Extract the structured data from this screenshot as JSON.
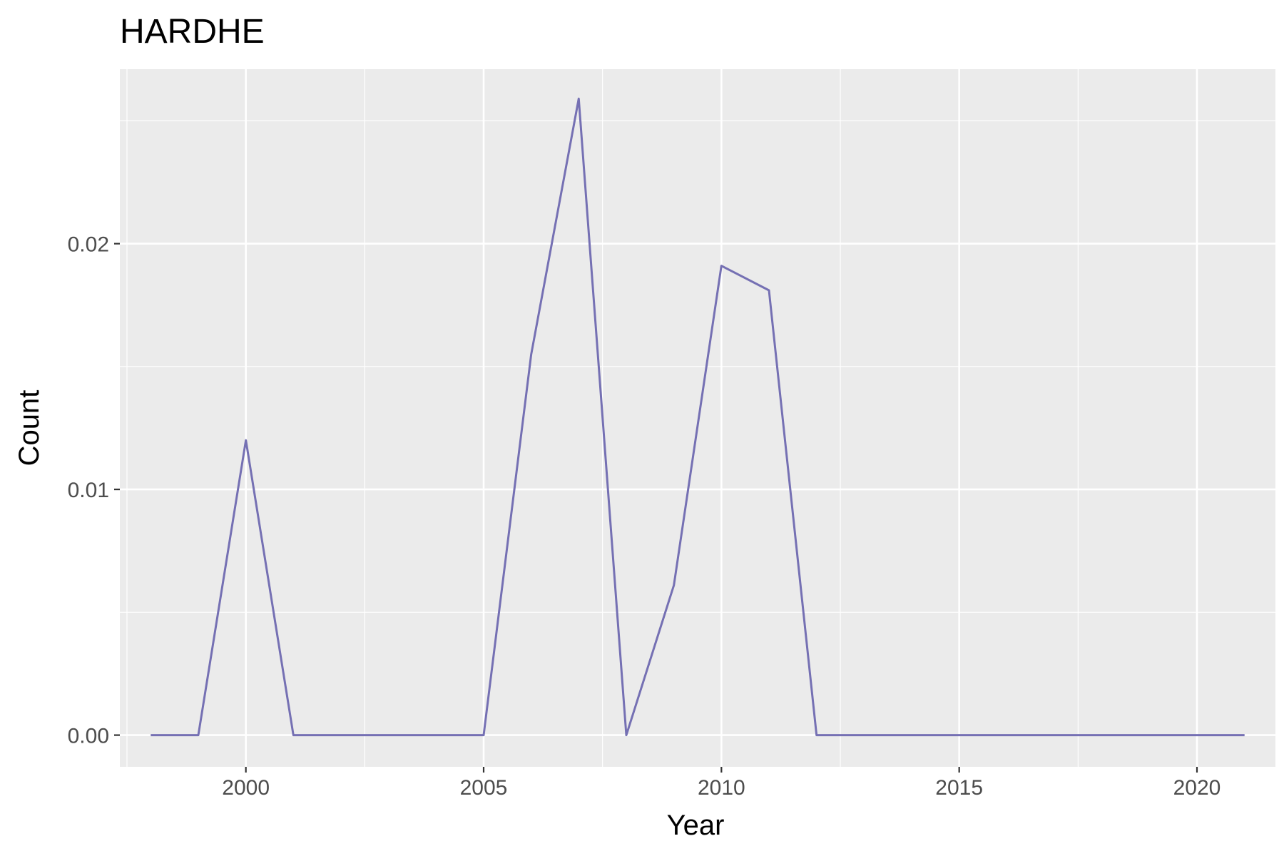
{
  "chart_data": {
    "type": "line",
    "title": "HARDHE",
    "xlabel": "Year",
    "ylabel": "Count",
    "xlim": [
      1997.35,
      2021.65
    ],
    "ylim": [
      -0.00129,
      0.0271
    ],
    "x_ticks": [
      2000,
      2005,
      2010,
      2015,
      2020
    ],
    "x_tick_labels": [
      "2000",
      "2005",
      "2010",
      "2015",
      "2020"
    ],
    "x_minor_ticks": [
      1997.5,
      2002.5,
      2007.5,
      2012.5,
      2017.5
    ],
    "y_ticks": [
      0,
      0.01,
      0.02
    ],
    "y_tick_labels": [
      "0.00",
      "0.01",
      "0.02"
    ],
    "y_minor_ticks": [
      0.005,
      0.015,
      0.025
    ],
    "grid": true,
    "panel_color": "#ebebeb",
    "grid_color": "#ffffff",
    "line_color": "#7570b3",
    "series": [
      {
        "x": [
          1998,
          1999,
          2000,
          2001,
          2002,
          2003,
          2004,
          2005,
          2006,
          2007,
          2008,
          2009,
          2010,
          2011,
          2012,
          2013,
          2014,
          2015,
          2016,
          2017,
          2018,
          2019,
          2020,
          2021
        ],
        "y": [
          0,
          0,
          0.012,
          0,
          0,
          0,
          0,
          0,
          0.0155,
          0.0259,
          0,
          0.0061,
          0.0191,
          0.0181,
          0,
          0,
          0,
          0,
          0,
          0,
          0,
          0,
          0,
          0
        ]
      }
    ]
  }
}
